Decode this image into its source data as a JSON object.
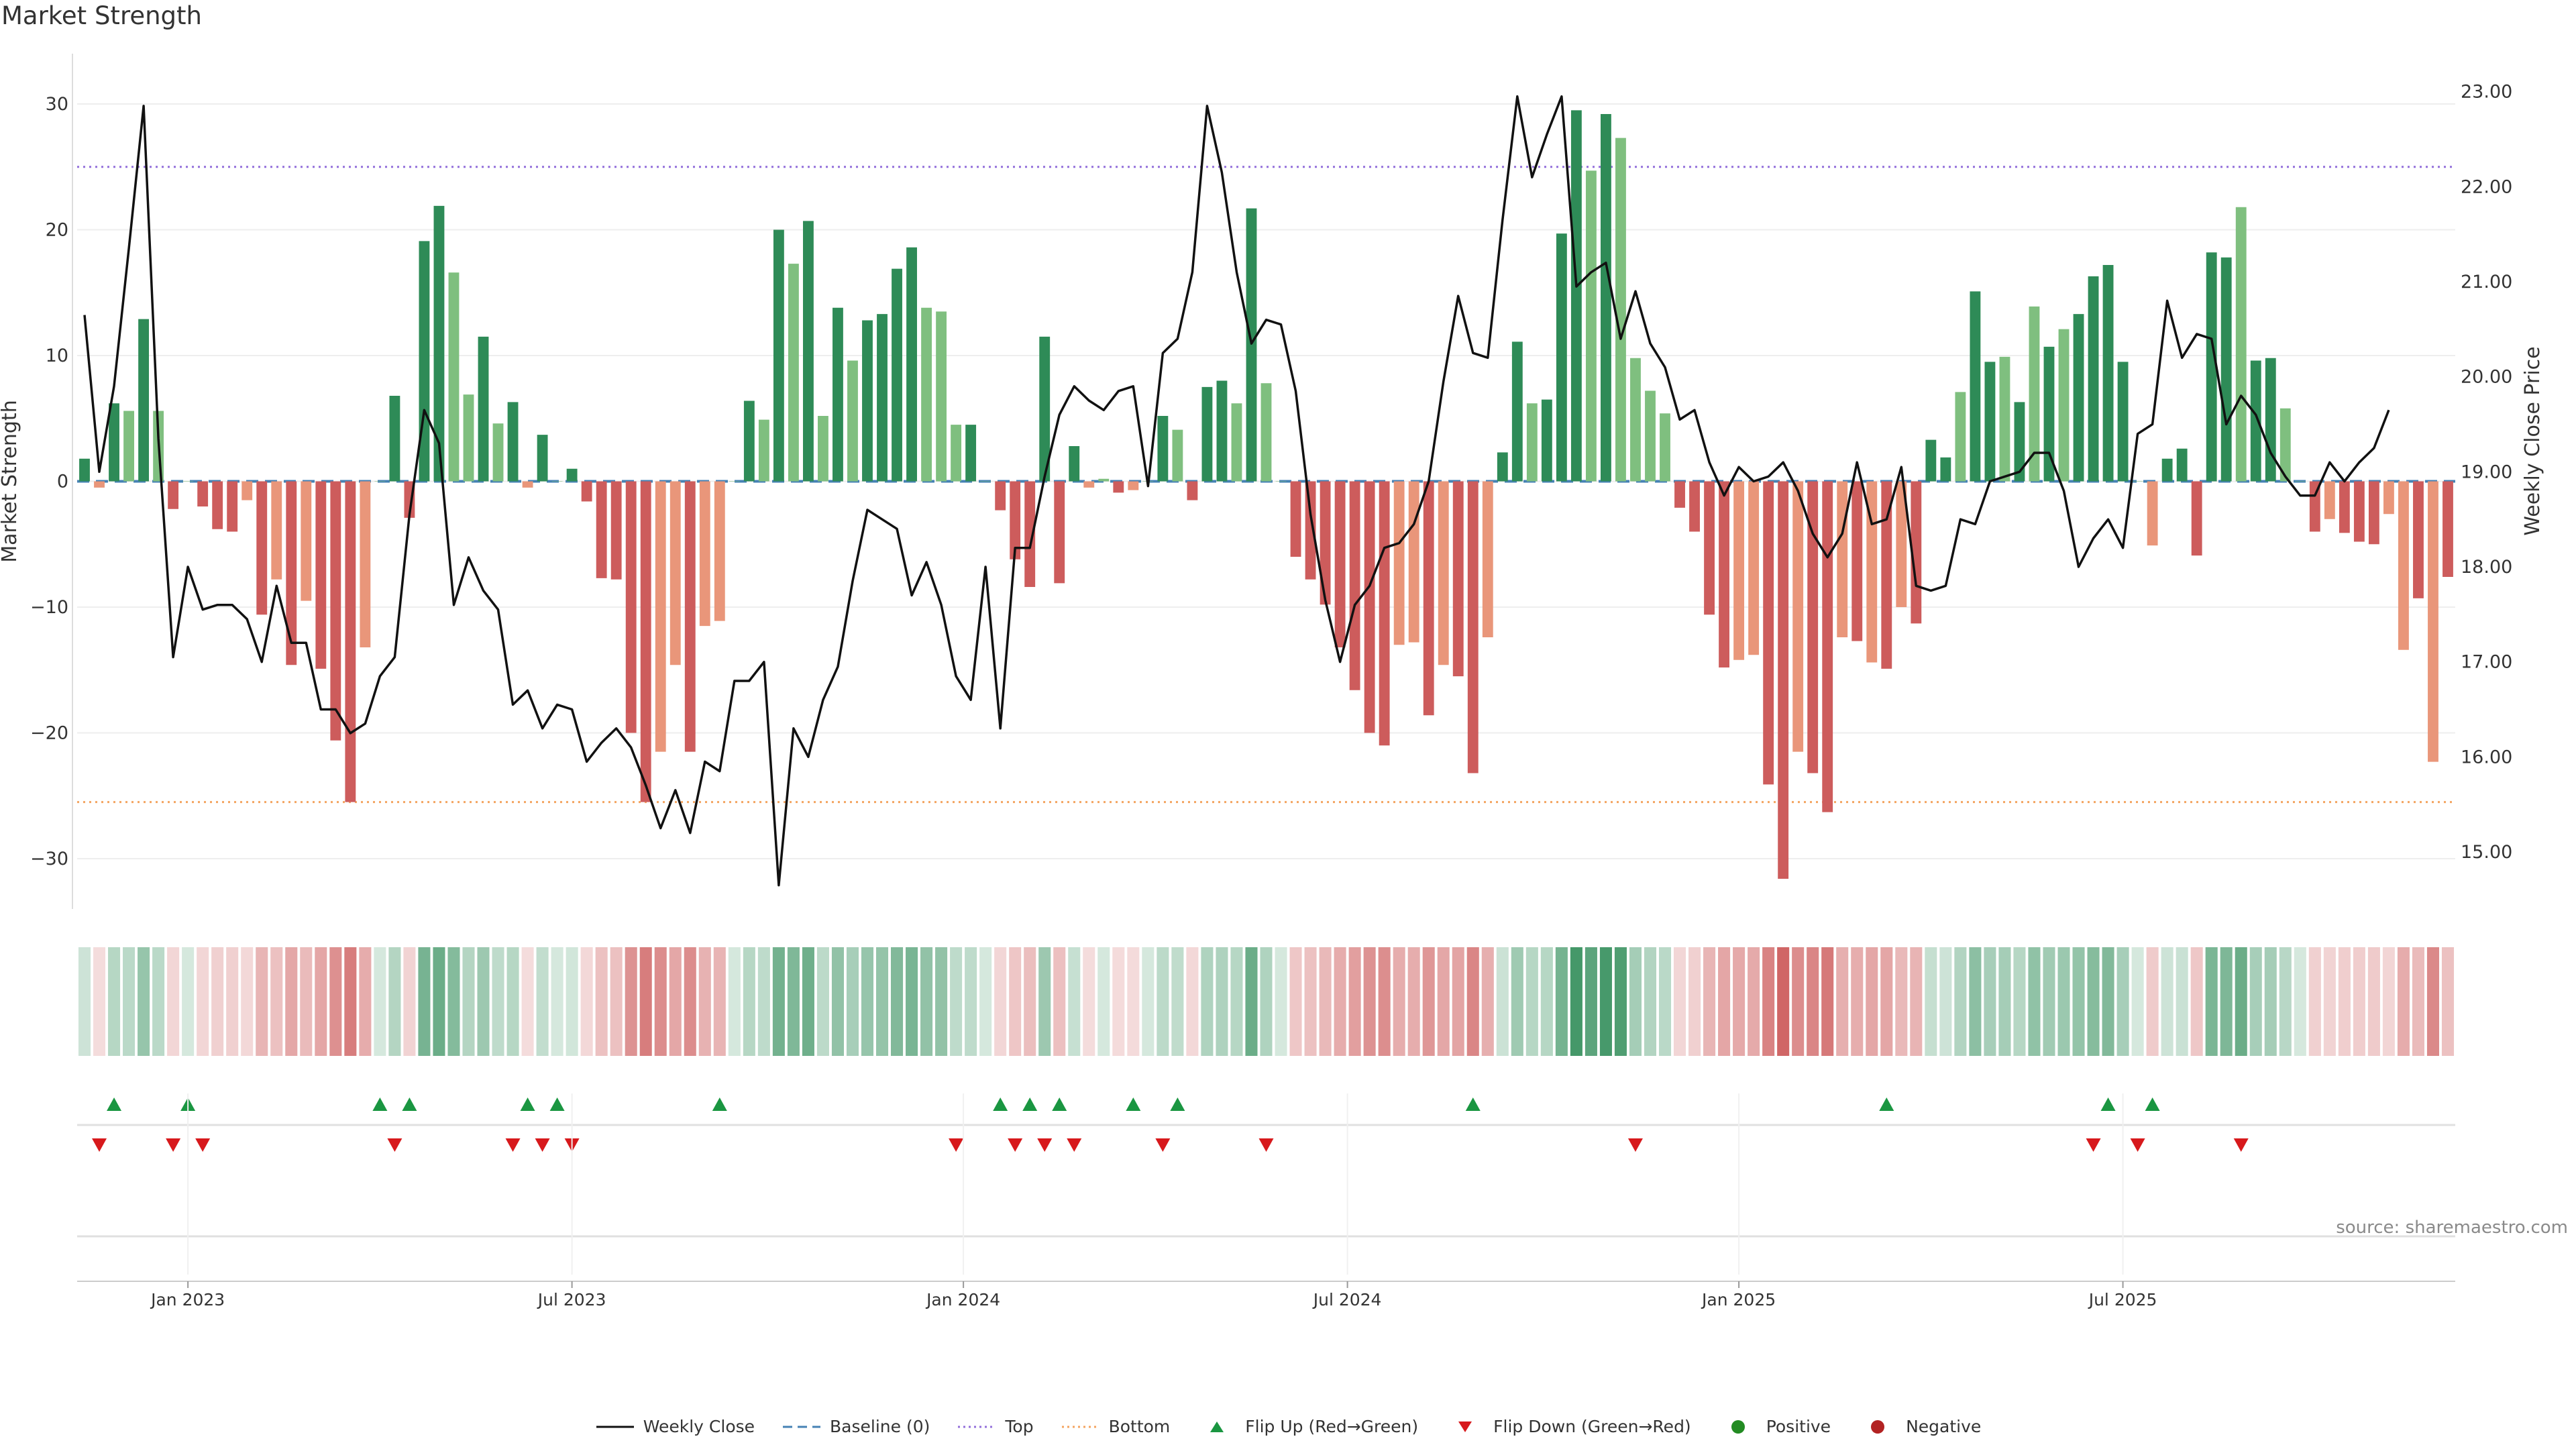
{
  "title": "Market Strength",
  "source": "source: sharemaestro.com",
  "colors": {
    "strong_green": "#2e8b57",
    "light_green": "#7fbf7f",
    "strong_red": "#cd5c5c",
    "light_red": "#e9967a",
    "price_line": "#111111",
    "baseline": "#4682b4",
    "top": "#9370db",
    "bottom": "#f4a460",
    "flip_up": "#1a9641",
    "flip_down": "#d7191c",
    "positive": "#228b22",
    "negative": "#b22222"
  },
  "legend": [
    {
      "key": "weekly-close",
      "label": "Weekly Close",
      "icon": "line-icon"
    },
    {
      "key": "baseline",
      "label": "Baseline (0)",
      "icon": "dashed-line-icon"
    },
    {
      "key": "top",
      "label": "Top",
      "icon": "dotted-line-icon"
    },
    {
      "key": "bottom",
      "label": "Bottom",
      "icon": "dotted-line-icon"
    },
    {
      "key": "flip-up",
      "label": "Flip Up (Red→Green)",
      "icon": "triangle-up-icon"
    },
    {
      "key": "flip-down",
      "label": "Flip Down (Green→Red)",
      "icon": "triangle-down-icon"
    },
    {
      "key": "positive",
      "label": "Positive",
      "icon": "dot-icon"
    },
    {
      "key": "negative",
      "label": "Negative",
      "icon": "dot-icon"
    }
  ],
  "chart_data": {
    "type": "bar",
    "title": "Market Strength",
    "ylabel_left": "Market Strength",
    "ylabel_right": "Weekly Close Price",
    "ylim_left": [
      -34,
      34
    ],
    "ylim_right": [
      14.4,
      23.4
    ],
    "yticks_left": [
      30,
      20,
      10,
      0,
      -10,
      -20,
      -30
    ],
    "yticks_left_labels": [
      "30",
      "20",
      "10",
      "0",
      "−10",
      "−20",
      "−30"
    ],
    "yticks_right": [
      23,
      22,
      21,
      20,
      19,
      18,
      17,
      16,
      15
    ],
    "yticks_right_labels": [
      "23.00",
      "22.00",
      "21.00",
      "20.00",
      "19.00",
      "18.00",
      "17.00",
      "16.00",
      "15.00"
    ],
    "x_ticks": [
      {
        "label": "Jan 2023",
        "index": 7
      },
      {
        "label": "Jul 2023",
        "index": 33
      },
      {
        "label": "Jan 2024",
        "index": 59.5
      },
      {
        "label": "Jul 2024",
        "index": 85.5
      },
      {
        "label": "Jan 2025",
        "index": 112
      },
      {
        "label": "Jul 2025",
        "index": 138
      }
    ],
    "top_line": 25,
    "bottom_line": -25.5,
    "baseline": 0,
    "strength": [
      1.8,
      -0.5,
      6.2,
      5.6,
      12.9,
      5.6,
      -2.2,
      0,
      -2.0,
      -3.8,
      -4.0,
      -1.5,
      -10.6,
      -7.8,
      -14.6,
      -9.5,
      -14.9,
      -20.6,
      -25.5,
      -13.2,
      0,
      6.8,
      -2.9,
      19.1,
      21.9,
      16.6,
      6.9,
      11.5,
      4.6,
      6.3,
      -0.5,
      3.7,
      0,
      1.0,
      -1.6,
      -7.7,
      -7.8,
      -20.0,
      -25.5,
      -21.5,
      -14.6,
      -21.5,
      -11.5,
      -11.1,
      0,
      6.4,
      4.9,
      20.0,
      17.3,
      20.7,
      5.2,
      13.8,
      9.6,
      12.8,
      13.3,
      16.9,
      18.6,
      13.8,
      13.5,
      4.5,
      4.5,
      0,
      -2.3,
      -6.2,
      -8.4,
      11.5,
      -8.1,
      2.8,
      -0.5,
      0.2,
      -0.9,
      -0.7,
      0,
      5.2,
      4.1,
      -1.5,
      7.5,
      8.0,
      6.2,
      21.7,
      7.8,
      0,
      -6.0,
      -7.8,
      -9.8,
      -13.2,
      -16.6,
      -20.0,
      -21.0,
      -13.0,
      -12.8,
      -18.6,
      -14.6,
      -15.5,
      -23.2,
      -12.4,
      2.3,
      11.1,
      6.2,
      6.5,
      19.7,
      29.5,
      24.7,
      29.2,
      27.3,
      9.8,
      7.2,
      5.4,
      -2.1,
      -4.0,
      -10.6,
      -14.8,
      -14.2,
      -13.8,
      -24.1,
      -31.6,
      -21.5,
      -23.2,
      -26.3,
      -12.4,
      -12.7,
      -14.4,
      -14.9,
      -10.0,
      -11.3,
      3.3,
      1.9,
      7.1,
      15.1,
      9.5,
      9.9,
      6.3,
      13.9,
      10.7,
      12.1,
      13.3,
      16.3,
      17.2,
      9.5,
      0,
      -5.1,
      1.8,
      2.6,
      -5.9,
      18.2,
      17.8,
      21.8,
      9.6,
      9.8,
      5.8,
      0,
      -4.0,
      -3.0,
      -4.1,
      -4.8,
      -5.0,
      -2.6,
      -13.4,
      -9.3,
      -22.3,
      -7.6
    ],
    "bar_shade": [
      "s",
      "l",
      "s",
      "l",
      "s",
      "l",
      "s",
      "l",
      "s",
      "s",
      "s",
      "l",
      "s",
      "l",
      "s",
      "l",
      "s",
      "s",
      "s",
      "l",
      "l",
      "s",
      "s",
      "s",
      "s",
      "l",
      "l",
      "s",
      "l",
      "s",
      "l",
      "s",
      "l",
      "s",
      "s",
      "s",
      "s",
      "s",
      "s",
      "l",
      "l",
      "s",
      "l",
      "l",
      "l",
      "s",
      "l",
      "s",
      "l",
      "s",
      "l",
      "s",
      "l",
      "s",
      "s",
      "s",
      "s",
      "l",
      "l",
      "l",
      "s",
      "l",
      "s",
      "s",
      "s",
      "s",
      "s",
      "s",
      "l",
      "l",
      "s",
      "l",
      "l",
      "s",
      "l",
      "s",
      "s",
      "s",
      "l",
      "s",
      "l",
      "l",
      "s",
      "s",
      "s",
      "s",
      "s",
      "s",
      "s",
      "l",
      "l",
      "s",
      "l",
      "s",
      "s",
      "l",
      "s",
      "s",
      "l",
      "s",
      "s",
      "s",
      "l",
      "s",
      "l",
      "l",
      "l",
      "l",
      "s",
      "s",
      "s",
      "s",
      "l",
      "l",
      "s",
      "s",
      "l",
      "s",
      "s",
      "l",
      "s",
      "l",
      "s",
      "l",
      "s",
      "s",
      "s",
      "l",
      "s",
      "s",
      "l",
      "s",
      "l",
      "s",
      "l",
      "s",
      "s",
      "s",
      "s",
      "l",
      "l",
      "s",
      "s",
      "s",
      "s",
      "s",
      "l",
      "s",
      "s",
      "l",
      "l",
      "s",
      "l",
      "s",
      "s",
      "s",
      "l",
      "l",
      "s",
      "l",
      "s",
      "l"
    ],
    "close": [
      20.65,
      19.0,
      19.9,
      21.35,
      22.85,
      19.35,
      17.05,
      18.0,
      17.55,
      17.6,
      17.6,
      17.45,
      17.0,
      17.8,
      17.2,
      17.2,
      16.5,
      16.5,
      16.25,
      16.35,
      16.85,
      17.05,
      18.55,
      19.65,
      19.3,
      17.6,
      18.1,
      17.75,
      17.55,
      16.55,
      16.7,
      16.3,
      16.55,
      16.5,
      15.95,
      16.15,
      16.3,
      16.1,
      15.7,
      15.25,
      15.65,
      15.2,
      15.95,
      15.85,
      16.8,
      16.8,
      17.0,
      14.65,
      16.3,
      16.0,
      16.6,
      16.95,
      17.85,
      18.6,
      18.5,
      18.4,
      17.7,
      18.05,
      17.6,
      16.85,
      16.6,
      18.0,
      16.3,
      18.2,
      18.2,
      18.95,
      19.6,
      19.9,
      19.75,
      19.65,
      19.85,
      19.9,
      18.85,
      20.25,
      20.4,
      21.1,
      22.85,
      22.15,
      21.1,
      20.35,
      20.6,
      20.55,
      19.85,
      18.55,
      17.65,
      17.0,
      17.6,
      17.8,
      18.2,
      18.25,
      18.45,
      18.9,
      19.95,
      20.85,
      20.25,
      20.2,
      21.65,
      22.95,
      22.1,
      22.55,
      22.95,
      20.95,
      21.1,
      21.2,
      20.4,
      20.9,
      20.35,
      20.1,
      19.55,
      19.65,
      19.1,
      18.75,
      19.05,
      18.9,
      18.95,
      19.1,
      18.8,
      18.35,
      18.1,
      18.35,
      19.1,
      18.45,
      18.5,
      19.05,
      17.8,
      17.75,
      17.8,
      18.5,
      18.45,
      18.9,
      18.95,
      19.0,
      19.2,
      19.2,
      18.8,
      18.0,
      18.3,
      18.5,
      18.2,
      19.4,
      19.5,
      20.8,
      20.2,
      20.45,
      20.4,
      19.5,
      19.8,
      19.6,
      19.2,
      18.95,
      18.75,
      18.75,
      19.1,
      18.9,
      19.1,
      19.25,
      19.65
    ],
    "heat_strip": "strength for each week, shaded green for positive and red for negative, deeper color for stronger magnitude",
    "flips_up": [
      2,
      7,
      20,
      22,
      30,
      32,
      43,
      62,
      64,
      66,
      71,
      74,
      94,
      122,
      137,
      140
    ],
    "flips_down": [
      1,
      6,
      8,
      21,
      29,
      31,
      33,
      59,
      63,
      65,
      67,
      73,
      80,
      105,
      136,
      139,
      146
    ]
  }
}
